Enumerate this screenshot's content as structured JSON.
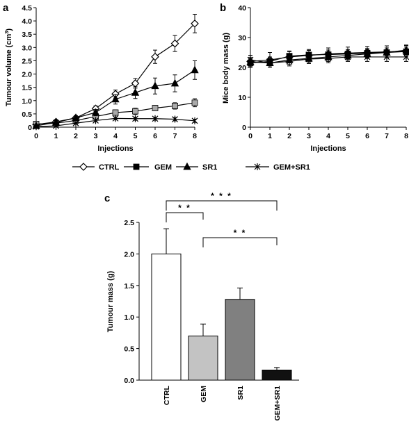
{
  "panels": {
    "a": "a",
    "b": "b",
    "c": "c"
  },
  "legend": [
    {
      "label": "CTRL",
      "marker": "diamond-open"
    },
    {
      "label": "GEM",
      "marker": "square-filled"
    },
    {
      "label": "SR1",
      "marker": "triangle-filled"
    },
    {
      "label": "GEM+SR1",
      "marker": "star-cross"
    }
  ],
  "chart_data": [
    {
      "type": "line",
      "panel": "a",
      "xlabel": "Injections",
      "ylabel": "Tumour volume (cm³)",
      "ylabel_main": "Tumour volume (cm",
      "ylabel_sup": "3",
      "ylabel_end": ")",
      "x": [
        0,
        1,
        2,
        3,
        4,
        5,
        6,
        7,
        8
      ],
      "xlim": [
        0,
        8
      ],
      "ylim": [
        0,
        4.5
      ],
      "yticks": [
        "0",
        "0.5",
        "1.0",
        "1.5",
        "2.0",
        "2.5",
        "3.0",
        "3.5",
        "4.0",
        "4.5"
      ],
      "ytick_values": [
        0,
        0.5,
        1.0,
        1.5,
        2.0,
        2.5,
        3.0,
        3.5,
        4.0,
        4.5
      ],
      "xticks": [
        "0",
        "1",
        "2",
        "3",
        "4",
        "5",
        "6",
        "7",
        "8"
      ],
      "series": [
        {
          "name": "CTRL",
          "marker": "diamond-open",
          "color": "#000000",
          "values": [
            0.1,
            0.2,
            0.35,
            0.7,
            1.25,
            1.65,
            2.65,
            3.15,
            3.9
          ],
          "errors": [
            0.05,
            0.08,
            0.08,
            0.1,
            0.15,
            0.18,
            0.25,
            0.3,
            0.35
          ]
        },
        {
          "name": "GEM",
          "marker": "square-filled",
          "color": "#a9a9a9",
          "values": [
            0.12,
            0.15,
            0.25,
            0.4,
            0.55,
            0.6,
            0.72,
            0.8,
            0.92
          ],
          "errors": [
            0.04,
            0.05,
            0.06,
            0.08,
            0.1,
            0.12,
            0.1,
            0.12,
            0.15
          ]
        },
        {
          "name": "SR1",
          "marker": "triangle-filled",
          "color": "#000000",
          "values": [
            0.05,
            0.18,
            0.35,
            0.55,
            1.05,
            1.3,
            1.55,
            1.65,
            2.15
          ],
          "errors": [
            0.04,
            0.06,
            0.08,
            0.12,
            0.18,
            0.22,
            0.3,
            0.32,
            0.35
          ]
        },
        {
          "name": "GEM+SR1",
          "marker": "star-cross",
          "color": "#000000",
          "values": [
            0.02,
            0.05,
            0.15,
            0.25,
            0.33,
            0.32,
            0.32,
            0.3,
            0.24
          ],
          "errors": [
            0.02,
            0.03,
            0.04,
            0.05,
            0.06,
            0.06,
            0.06,
            0.06,
            0.06
          ]
        }
      ]
    },
    {
      "type": "line",
      "panel": "b",
      "xlabel": "Injections",
      "ylabel": "Mice body mass (g)",
      "x": [
        0,
        1,
        2,
        3,
        4,
        5,
        6,
        7,
        8
      ],
      "xlim": [
        0,
        8
      ],
      "ylim": [
        0,
        40
      ],
      "yticks": [
        "0",
        "10",
        "20",
        "30",
        "40"
      ],
      "ytick_values": [
        0,
        10,
        20,
        30,
        40
      ],
      "xticks": [
        "0",
        "1",
        "2",
        "3",
        "4",
        "5",
        "6",
        "7",
        "8"
      ],
      "series": [
        {
          "name": "CTRL",
          "marker": "diamond-open",
          "color": "#000000",
          "values": [
            22.0,
            22.5,
            23.5,
            24.0,
            24.5,
            24.8,
            25.0,
            25.2,
            25.5
          ],
          "errors": [
            2.0,
            2.5,
            2.0,
            2.0,
            2.0,
            2.0,
            2.0,
            2.0,
            2.0
          ]
        },
        {
          "name": "GEM",
          "marker": "square-filled",
          "color": "#000000",
          "values": [
            21.5,
            22.0,
            23.8,
            24.2,
            24.3,
            24.5,
            24.8,
            25.0,
            25.3
          ],
          "errors": [
            1.5,
            1.5,
            1.5,
            1.5,
            1.5,
            1.5,
            1.5,
            1.5,
            1.5
          ]
        },
        {
          "name": "SR1",
          "marker": "triangle-filled",
          "color": "#000000",
          "values": [
            21.8,
            21.5,
            22.5,
            23.0,
            23.5,
            24.0,
            24.5,
            25.0,
            25.8
          ],
          "errors": [
            1.5,
            1.5,
            1.5,
            1.5,
            1.5,
            1.5,
            1.5,
            1.5,
            1.5
          ]
        },
        {
          "name": "GEM+SR1",
          "marker": "star-cross",
          "color": "#000000",
          "values": [
            22.5,
            21.5,
            22.0,
            22.8,
            23.0,
            23.5,
            23.5,
            23.5,
            23.5
          ],
          "errors": [
            1.5,
            1.5,
            1.5,
            1.5,
            1.5,
            1.5,
            1.5,
            1.5,
            1.5
          ]
        }
      ]
    },
    {
      "type": "bar",
      "panel": "c",
      "ylabel": "Tumour mass (g)",
      "ylim": [
        0,
        2.5
      ],
      "yticks": [
        "0.0",
        "0.5",
        "1.0",
        "1.5",
        "2.0",
        "2.5"
      ],
      "ytick_values": [
        0,
        0.5,
        1.0,
        1.5,
        2.0,
        2.5
      ],
      "categories": [
        "CTRL",
        "GEM",
        "SR1",
        "GEM+SR1"
      ],
      "values": [
        2.0,
        0.7,
        1.28,
        0.16
      ],
      "errors": [
        0.4,
        0.19,
        0.18,
        0.04
      ],
      "colors": [
        "#ffffff",
        "#c3c3c3",
        "#808080",
        "#111111"
      ],
      "significance": [
        {
          "from": "CTRL",
          "to": "GEM",
          "label": "* *"
        },
        {
          "from": "CTRL",
          "to": "GEM+SR1",
          "label": "* * *"
        },
        {
          "from": "GEM",
          "to": "GEM+SR1",
          "label": "* *"
        }
      ]
    }
  ]
}
